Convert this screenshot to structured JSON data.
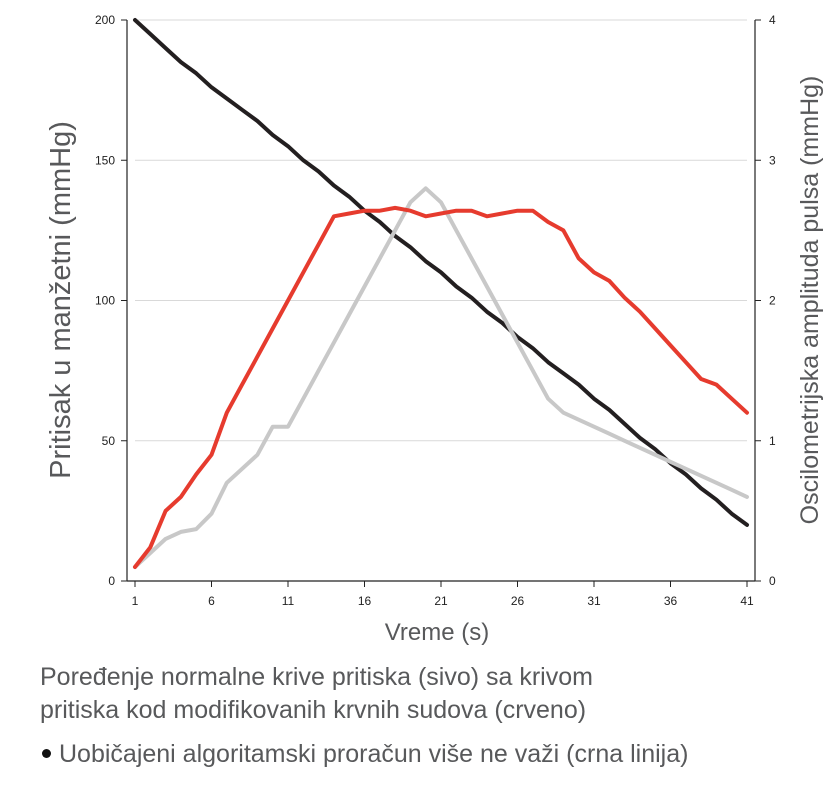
{
  "chart_data": {
    "type": "line",
    "xlabel": "Vreme (s)",
    "ylabel_left": "Pritisak u manžetni (mmHg)",
    "ylabel_right": "Oscilometrijska amplituda pulsa (mmHg)",
    "x_ticks": [
      1,
      6,
      11,
      16,
      21,
      26,
      31,
      36,
      41
    ],
    "xlim": [
      1,
      41
    ],
    "ylim_left": [
      0,
      200
    ],
    "y_ticks_left": [
      0,
      50,
      100,
      150,
      200
    ],
    "ylim_right": [
      0,
      4
    ],
    "y_ticks_right": [
      0,
      1,
      2,
      3,
      4
    ],
    "grid": "horizontal",
    "x": [
      1,
      2,
      3,
      4,
      5,
      6,
      7,
      8,
      9,
      10,
      11,
      12,
      13,
      14,
      15,
      16,
      17,
      18,
      19,
      20,
      21,
      22,
      23,
      24,
      25,
      26,
      27,
      28,
      29,
      30,
      31,
      32,
      33,
      34,
      35,
      36,
      37,
      38,
      39,
      40,
      41
    ],
    "series": [
      {
        "color": "#231f20",
        "axis": "left",
        "values": [
          200,
          195,
          190,
          185,
          181,
          176,
          172,
          168,
          164,
          159,
          155,
          150,
          146,
          141,
          137,
          132,
          128,
          123,
          119,
          114,
          110,
          105,
          101,
          96,
          92,
          87,
          83,
          78,
          74,
          70,
          65,
          61,
          56,
          51,
          47,
          42,
          38,
          33,
          29,
          24,
          20
        ]
      },
      {
        "color": "#c8c8c8",
        "axis": "right",
        "values": [
          0.1,
          0.2,
          0.3,
          0.35,
          0.37,
          0.48,
          0.7,
          0.8,
          0.9,
          1.1,
          1.1,
          1.3,
          1.5,
          1.7,
          1.9,
          2.1,
          2.3,
          2.5,
          2.7,
          2.8,
          2.7,
          2.5,
          2.3,
          2.1,
          1.9,
          1.7,
          1.5,
          1.3,
          1.2,
          1.15,
          1.1,
          1.05,
          1.0,
          0.95,
          0.9,
          0.85,
          0.8,
          0.75,
          0.7,
          0.65,
          0.6
        ]
      },
      {
        "color": "#e63b2e",
        "axis": "left",
        "values": [
          5,
          12,
          25,
          30,
          38,
          45,
          60,
          70,
          80,
          90,
          100,
          110,
          120,
          130,
          131,
          132,
          132,
          133,
          132,
          130,
          131,
          132,
          132,
          130,
          131,
          132,
          132,
          128,
          125,
          115,
          110,
          107,
          101,
          96,
          90,
          84,
          78,
          72,
          70,
          65,
          60
        ]
      }
    ]
  },
  "caption": {
    "line1": "Poređenje normalne krive pritiska (sivo) sa krivom",
    "line2": "pritiska kod modifikovanih krvnih sudova (crveno)",
    "bullet": "Uobičajeni algoritamski proračun više ne važi (crna linija)"
  }
}
